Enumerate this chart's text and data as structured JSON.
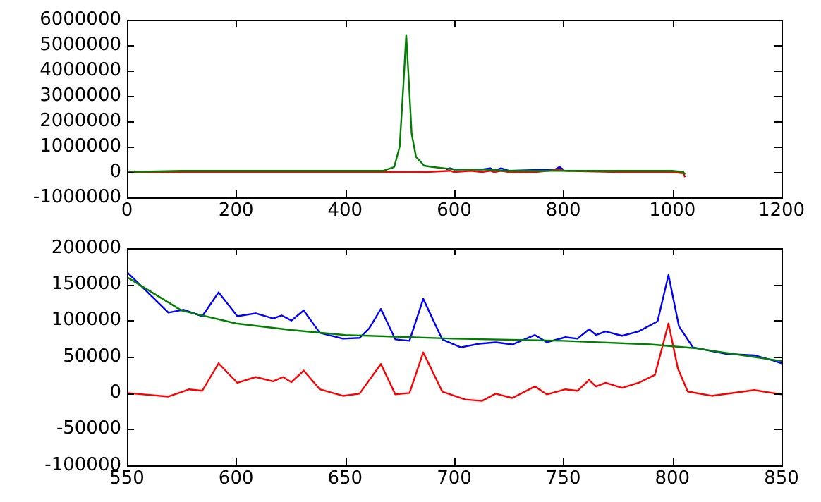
{
  "chart_data": [
    {
      "type": "line",
      "xlim": [
        0,
        1200
      ],
      "xticks": [
        0,
        200,
        400,
        600,
        800,
        1000,
        1200
      ],
      "ylim": [
        -1000000,
        6000000
      ],
      "yticks": [
        -1000000,
        0,
        1000000,
        2000000,
        3000000,
        4000000,
        5000000,
        6000000
      ],
      "grid": false,
      "legend": false,
      "marker": "none",
      "line_style": "solid",
      "series": [
        {
          "color": "#0000ff",
          "x": [
            585,
            592,
            600,
            650,
            666,
            673,
            686,
            700,
            785,
            793,
            800
          ],
          "values": [
            100000,
            150000,
            100000,
            100000,
            150000,
            50000,
            150000,
            50000,
            100000,
            200000,
            100000
          ]
        },
        {
          "color": "#ff0000",
          "x": [
            0,
            100,
            200,
            300,
            400,
            500,
            550,
            592,
            600,
            631,
            650,
            666,
            673,
            686,
            700,
            750,
            793,
            803,
            900,
            1000,
            1020,
            1023
          ],
          "values": [
            0,
            0,
            0,
            0,
            0,
            0,
            0,
            50000,
            0,
            50000,
            0,
            50000,
            0,
            50000,
            0,
            0,
            100000,
            50000,
            0,
            0,
            -50000,
            -200000
          ]
        },
        {
          "color": "#008000",
          "x": [
            0,
            100,
            200,
            300,
            400,
            470,
            490,
            500,
            507,
            512,
            517,
            522,
            530,
            545,
            560,
            600,
            650,
            700,
            750,
            790,
            850,
            900,
            1000,
            1020,
            1023
          ],
          "values": [
            0,
            50000,
            50000,
            50000,
            50000,
            50000,
            200000,
            1000000,
            3500000,
            5400000,
            3500000,
            1500000,
            600000,
            250000,
            200000,
            100000,
            100000,
            50000,
            50000,
            50000,
            50000,
            50000,
            50000,
            0,
            -100000
          ]
        }
      ]
    },
    {
      "type": "line",
      "xlim": [
        550,
        850
      ],
      "xticks": [
        550,
        600,
        650,
        700,
        750,
        800,
        850
      ],
      "ylim": [
        -100000,
        200000
      ],
      "yticks": [
        -100000,
        -50000,
        0,
        50000,
        100000,
        150000,
        200000
      ],
      "grid": false,
      "legend": false,
      "marker": "none",
      "line_style": "solid",
      "series": [
        {
          "color": "#0000ff",
          "x": [
            550,
            569,
            576,
            584.5,
            592,
            600.6,
            609,
            617,
            621,
            625.4,
            631,
            638.4,
            649,
            656.6,
            661,
            666.4,
            673,
            679.5,
            685.8,
            694.5,
            703,
            711.5,
            719,
            726.6,
            737,
            742.5,
            751,
            756.5,
            761.8,
            765,
            769.4,
            776.9,
            784.5,
            793.2,
            798.2,
            803,
            809.4,
            824.5,
            837.5,
            846,
            850
          ],
          "values": [
            167000,
            111000,
            115000,
            106000,
            139000,
            106000,
            110000,
            103000,
            107000,
            100000,
            114000,
            83000,
            75000,
            76000,
            89000,
            116000,
            74000,
            72000,
            130000,
            74000,
            63000,
            68000,
            70000,
            67000,
            80000,
            70000,
            77000,
            75000,
            88000,
            80000,
            85000,
            79000,
            85000,
            99000,
            163000,
            92000,
            63000,
            54000,
            52000,
            45000,
            41000
          ]
        },
        {
          "color": "#ff0000",
          "x": [
            550,
            569,
            578.5,
            584.5,
            592,
            600.6,
            609,
            617,
            621.5,
            625.4,
            631,
            638.4,
            649,
            656.6,
            666.4,
            673,
            679.5,
            685.8,
            694.5,
            705,
            712.7,
            719,
            726.6,
            737,
            742.5,
            751,
            756.5,
            761.8,
            765,
            769.4,
            776.9,
            784.5,
            792,
            798.2,
            802.5,
            807,
            818,
            837.5,
            850
          ],
          "values": [
            0,
            -5000,
            5000,
            3000,
            41000,
            14000,
            22000,
            16000,
            22000,
            15000,
            31000,
            5000,
            -4000,
            -1000,
            40000,
            -2000,
            0,
            56000,
            2000,
            -9000,
            -11000,
            -1000,
            -7000,
            9000,
            -2000,
            5000,
            3000,
            18000,
            9000,
            14000,
            7000,
            14000,
            25000,
            96000,
            34000,
            2000,
            -4000,
            4000,
            -2000
          ]
        },
        {
          "color": "#008000",
          "x": [
            550,
            575,
            600,
            625,
            650,
            700,
            750,
            790,
            810,
            850
          ],
          "values": [
            160000,
            114000,
            96000,
            87000,
            80000,
            75000,
            72000,
            67000,
            62000,
            44000
          ]
        }
      ]
    }
  ]
}
